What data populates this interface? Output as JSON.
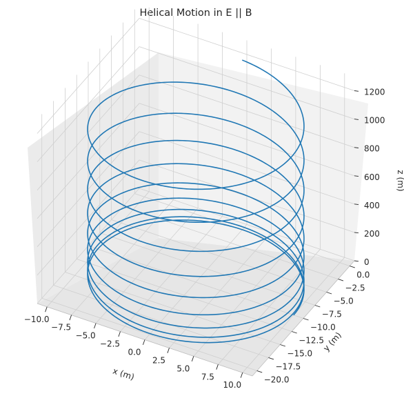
{
  "chart_data": {
    "type": "line",
    "projection": "3d",
    "title": "Helical Motion in E || B",
    "xlabel": "x (m)",
    "ylabel": "y (m)",
    "zlabel": "z (m)",
    "xticks": [
      "−10.0",
      "−7.5",
      "−5.0",
      "−2.5",
      "0.0",
      "2.5",
      "5.0",
      "7.5",
      "10.0"
    ],
    "yticks": [
      "0.0",
      "−2.5",
      "−5.0",
      "−7.5",
      "−10.0",
      "−12.5",
      "−15.0",
      "−17.5",
      "−20.0"
    ],
    "zticks": [
      "0",
      "200",
      "400",
      "600",
      "800",
      "1000",
      "1200"
    ],
    "xlim": [
      -11,
      11
    ],
    "ylim": [
      -21,
      1
    ],
    "zlim": [
      0,
      1300
    ],
    "grid": true,
    "series": [
      {
        "color": "#1f77b4",
        "parametric": {
          "x": "10 * cos(2*pi*t)",
          "y": "-10 + 10 * sin(2*pi*t)",
          "z": "14 * t^2",
          "t_range": [
            0,
            9.25
          ]
        }
      }
    ]
  }
}
